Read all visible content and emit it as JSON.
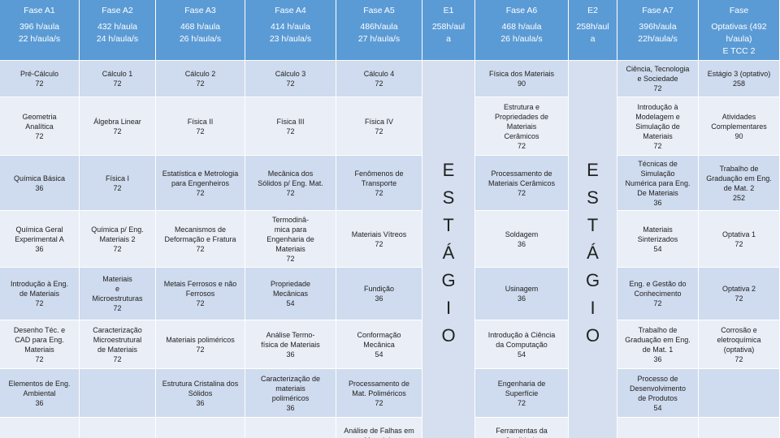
{
  "header": [
    [
      "Fase A1",
      "396 h/aula",
      "22 h/aula/s"
    ],
    [
      "Fase A2",
      "432 h/aula",
      "24 h/aula/s"
    ],
    [
      "Fase A3",
      "468 h/aula",
      "26 h/aula/s"
    ],
    [
      "Fase A4",
      "414 h/aula",
      "23 h/aula/s"
    ],
    [
      "Fase A5",
      "486h/aula",
      "27 h/aula/s"
    ],
    [
      "E1",
      "258h/aul",
      "a"
    ],
    [
      "Fase A6",
      "468 h/aula",
      "26 h/aula/s"
    ],
    [
      "E2",
      "258h/aul",
      "a"
    ],
    [
      "Fase A7",
      "396h/aula",
      "22h/aula/s"
    ],
    [
      "Fase",
      "Optativas (492",
      "h/aula)",
      "E TCC 2"
    ]
  ],
  "stage_e1": [
    "E",
    "S",
    "T",
    "Á",
    "G",
    "I",
    "O"
  ],
  "stage_e2": [
    "E",
    "S",
    "T",
    "Á",
    "G",
    "I",
    "O"
  ],
  "rows": [
    [
      [
        "Pré-Cálculo",
        "72"
      ],
      [
        "Cálculo 1",
        "72"
      ],
      [
        "Cálculo 2",
        "72"
      ],
      [
        "Cálculo 3",
        "72"
      ],
      [
        "Cálculo 4",
        "72"
      ],
      [
        "Física dos Materiais",
        "90"
      ],
      [
        "Ciência, Tecnologia",
        "e Sociedade",
        "72"
      ],
      [
        "Estágio 3 (optativo)",
        "258"
      ]
    ],
    [
      [
        "Geometria",
        "Analítica",
        "72"
      ],
      [
        "Álgebra Linear",
        "72"
      ],
      [
        "Física II",
        "72"
      ],
      [
        "Física III",
        "72"
      ],
      [
        "Física IV",
        "72"
      ],
      [
        "Estrutura e",
        "Propriedades de",
        "Materiais",
        "Cerâmicos",
        "72"
      ],
      [
        "Introdução à",
        "Modelagem e",
        "Simulação de",
        "Materiais",
        "72"
      ],
      [
        "Atividades",
        "Complementares",
        "90"
      ]
    ],
    [
      [
        "Química Básica",
        "36"
      ],
      [
        "Física I",
        "72"
      ],
      [
        "Estatística e Metrologia",
        "para Engenheiros",
        "72"
      ],
      [
        "Mecânica dos",
        "Sólidos p/ Eng. Mat.",
        "72"
      ],
      [
        "Fenômenos de",
        "Transporte",
        "72"
      ],
      [
        "Processamento de",
        "Materiais Cerâmicos",
        "72"
      ],
      [
        "Técnicas de",
        "Simulação",
        "Numérica para Eng.",
        "De Materiais",
        "36"
      ],
      [
        "Trabalho de",
        "Graduação em Eng.",
        "de Mat. 2",
        "252"
      ]
    ],
    [
      [
        "Química Geral",
        "Experimental A",
        "36"
      ],
      [
        "Química p/ Eng.",
        "Materiais 2",
        "72"
      ],
      [
        "Mecanismos de",
        "Deformação e Fratura",
        "72"
      ],
      [
        "Termodinâ-",
        "mica para",
        "Engenharia de",
        "Materiais",
        "72"
      ],
      [
        "Materiais Vítreos",
        "72"
      ],
      [
        "Soldagem",
        "36"
      ],
      [
        "Materiais",
        "Sinterizados",
        "54"
      ],
      [
        "Optativa 1",
        "72"
      ]
    ],
    [
      [
        "Introdução à Eng.",
        "de Materiais",
        "72"
      ],
      [
        "Materiais",
        "e",
        "Microestruturas",
        "72"
      ],
      [
        "Metais Ferrosos e não",
        "Ferrosos",
        "72"
      ],
      [
        "Propriedade",
        "Mecânicas",
        "54"
      ],
      [
        "Fundição",
        "36"
      ],
      [
        "Usinagem",
        "36"
      ],
      [
        "Eng. e Gestão do",
        "Conhecimento",
        "72"
      ],
      [
        "Optativa 2",
        "72"
      ]
    ],
    [
      [
        "Desenho Téc. e",
        "CAD para Eng.",
        "Materiais",
        "72"
      ],
      [
        "Caracterização",
        "Microestrutural",
        "de Materiais",
        "72"
      ],
      [
        "Materiais poliméricos",
        "72"
      ],
      [
        "Análise Termo-",
        "física de Materiais",
        "36"
      ],
      [
        "Conformação",
        "Mecânica",
        "54"
      ],
      [
        "Introdução à Ciência",
        "da Computação",
        "54"
      ],
      [
        "Trabalho de",
        "Graduação em Eng.",
        "de Mat. 1",
        "36"
      ],
      [
        "Corrosão e",
        "eletroquímica",
        "(optativa)",
        "72"
      ]
    ],
    [
      [
        "Elementos de Eng.",
        "Ambiental",
        "36"
      ],
      [],
      [
        "Estrutura Cristalina dos",
        "Sólidos",
        "36"
      ],
      [
        "Caracterização de",
        "materiais",
        "poliméricos",
        "36"
      ],
      [
        "Processamento de",
        "Mat. Poliméricos",
        "72"
      ],
      [
        "Engenharia de",
        "Superfície",
        "72"
      ],
      [
        "Processo de",
        "Desenvolvimento",
        "de Produtos",
        "54"
      ],
      []
    ],
    [
      [],
      [],
      [],
      [],
      [
        "Análise de Falhas em",
        "Materiais"
      ],
      [
        "Ferramentas da",
        "Qualidade"
      ],
      [],
      []
    ]
  ]
}
